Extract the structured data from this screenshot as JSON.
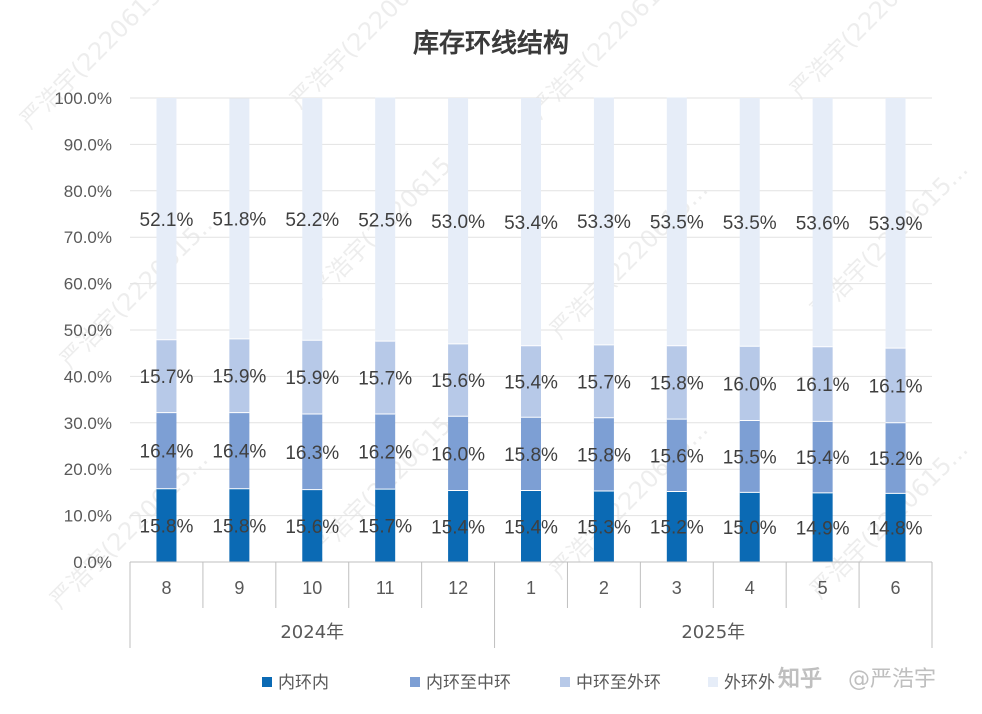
{
  "chart_data": {
    "type": "bar",
    "stacked": true,
    "percent_stacked": true,
    "title": "库存环线结构",
    "xlabel": "",
    "ylabel": "",
    "ylim": [
      0,
      100
    ],
    "yticks": [
      "0.0%",
      "10.0%",
      "20.0%",
      "30.0%",
      "40.0%",
      "50.0%",
      "60.0%",
      "70.0%",
      "80.0%",
      "90.0%",
      "100.0%"
    ],
    "categories": [
      "8",
      "9",
      "10",
      "11",
      "12",
      "1",
      "2",
      "3",
      "4",
      "5",
      "6"
    ],
    "groups": [
      {
        "label": "2024年",
        "categories": [
          "8",
          "9",
          "10",
          "11",
          "12"
        ]
      },
      {
        "label": "2025年",
        "categories": [
          "1",
          "2",
          "3",
          "4",
          "5",
          "6"
        ]
      }
    ],
    "series": [
      {
        "name": "内环内",
        "color": "#0b6ab4",
        "labels": [
          "15.8%",
          "15.8%",
          "15.6%",
          "15.7%",
          "15.4%",
          "15.4%",
          "15.3%",
          "15.2%",
          "15.0%",
          "14.9%",
          "14.8%"
        ],
        "values": [
          15.8,
          15.8,
          15.6,
          15.7,
          15.4,
          15.4,
          15.3,
          15.2,
          15.0,
          14.9,
          14.8
        ]
      },
      {
        "name": "内环至中环",
        "color": "#7d9fd4",
        "labels": [
          "16.4%",
          "16.4%",
          "16.3%",
          "16.2%",
          "16.0%",
          "15.8%",
          "15.8%",
          "15.6%",
          "15.5%",
          "15.4%",
          "15.2%"
        ],
        "values": [
          16.4,
          16.4,
          16.3,
          16.2,
          16.0,
          15.8,
          15.8,
          15.6,
          15.5,
          15.4,
          15.2
        ]
      },
      {
        "name": "中环至外环",
        "color": "#b7c9e8",
        "labels": [
          "15.7%",
          "15.9%",
          "15.9%",
          "15.7%",
          "15.6%",
          "15.4%",
          "15.7%",
          "15.8%",
          "16.0%",
          "16.1%",
          "16.1%"
        ],
        "values": [
          15.7,
          15.9,
          15.9,
          15.7,
          15.6,
          15.4,
          15.7,
          15.8,
          16.0,
          16.1,
          16.1
        ]
      },
      {
        "name": "外环外",
        "color": "#e6edf8",
        "labels": [
          "52.1%",
          "51.8%",
          "52.2%",
          "52.5%",
          "53.0%",
          "53.4%",
          "53.3%",
          "53.5%",
          "53.5%",
          "53.6%",
          "53.9%"
        ],
        "values": [
          52.1,
          51.8,
          52.2,
          52.5,
          53.0,
          53.4,
          53.3,
          53.5,
          53.5,
          53.6,
          53.9
        ]
      }
    ],
    "grid": true,
    "legend_position": "bottom"
  },
  "watermark": {
    "brand": "知乎",
    "handle": "@严浩宇",
    "tiled_text": "严浩宇(2220615..."
  }
}
